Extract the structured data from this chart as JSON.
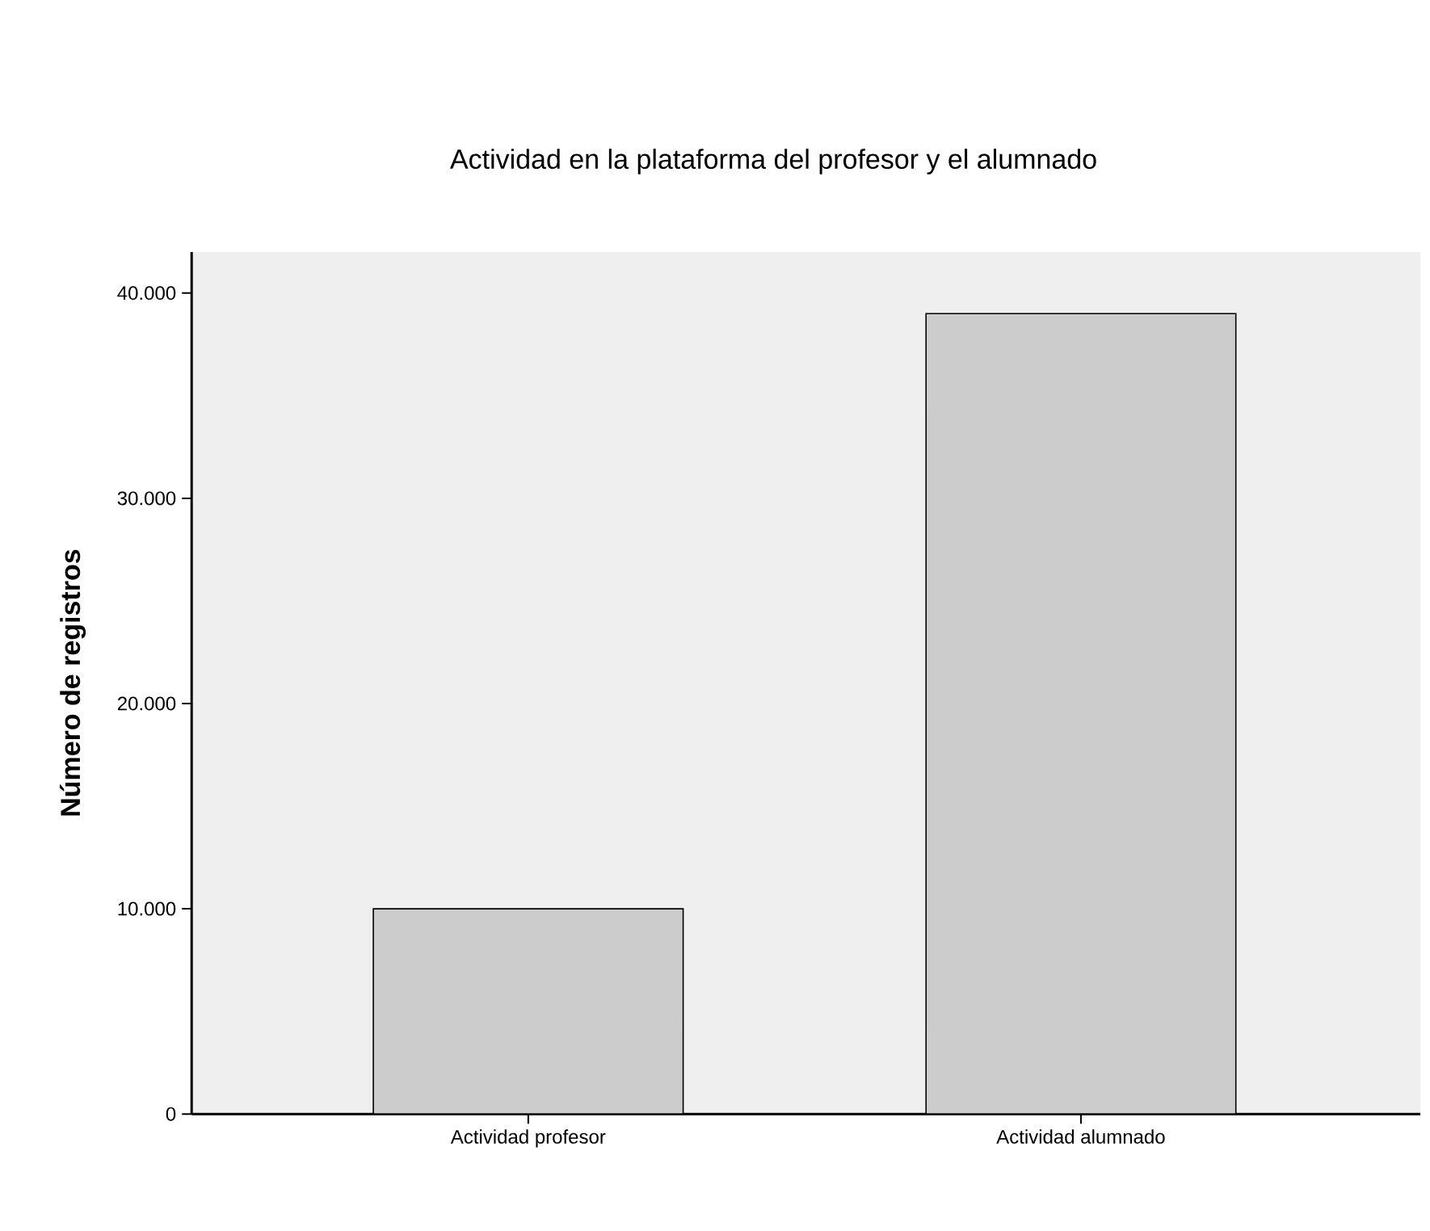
{
  "chart_data": {
    "type": "bar",
    "title": "Actividad en la plataforma del profesor y el alumnado",
    "ylabel": "Número de registros",
    "categories": [
      "Actividad profesor",
      "Actividad alumnado"
    ],
    "values": [
      10000,
      39000
    ],
    "color": "#cccccc",
    "ylim": [
      0,
      42000
    ],
    "yticks": [
      0,
      {
        "value": 10000,
        "label": "10.000"
      },
      {
        "value": 20000,
        "label": "20.000"
      },
      {
        "value": 30000,
        "label": "30.000"
      },
      {
        "value": 40000,
        "label": "40.000"
      }
    ]
  }
}
